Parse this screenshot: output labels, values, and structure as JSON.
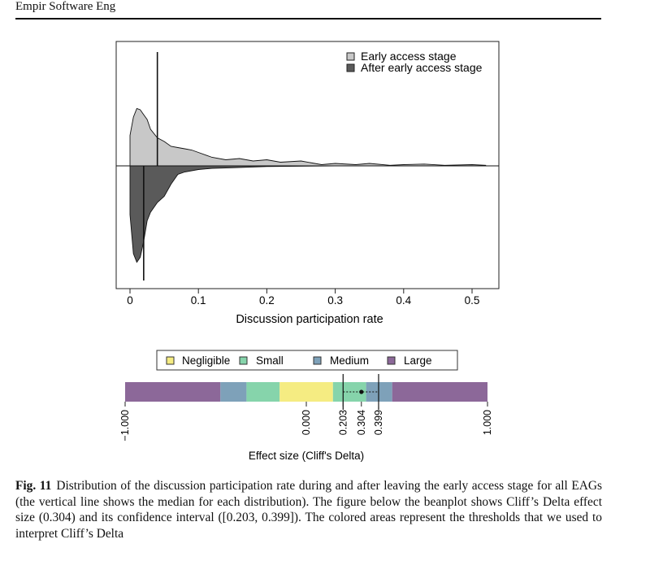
{
  "running_head": "Empir Software Eng",
  "figure_label": "Fig. 11",
  "caption": "Distribution of the discussion participation rate during and after leaving the early access stage for all EAGs (the vertical line shows the median for each distribution). The figure below the beanplot shows Cliff’s Delta effect size (0.304) and its confidence interval ([0.203, 0.399]). The colored areas represent the thresholds that we used to interpret Cliff’s Delta",
  "colors": {
    "early": "#c8c8c8",
    "after": "#5a5a5a",
    "negligible": "#f5ec82",
    "small": "#86d4ab",
    "medium": "#7ea1b9",
    "large": "#8c6899"
  },
  "chart_data": [
    {
      "type": "area",
      "subtype": "beanplot",
      "xlabel": "Discussion participation rate",
      "xlim": [
        -0.02,
        0.54
      ],
      "xticks": [
        0,
        0.1,
        0.2,
        0.3,
        0.4,
        0.5
      ],
      "xtick_labels": [
        "0",
        "0.1",
        "0.2",
        "0.3",
        "0.4",
        "0.5"
      ],
      "legend_position": "top-right",
      "series": [
        {
          "name": "Early access stage",
          "side": "upper",
          "median": 0.04,
          "x": [
            0.0,
            0.005,
            0.01,
            0.015,
            0.02,
            0.025,
            0.03,
            0.04,
            0.05,
            0.06,
            0.07,
            0.08,
            0.09,
            0.1,
            0.12,
            0.14,
            0.16,
            0.18,
            0.2,
            0.22,
            0.25,
            0.28,
            0.3,
            0.33,
            0.35,
            0.38,
            0.4,
            0.43,
            0.46,
            0.5,
            0.52
          ],
          "y": [
            0.25,
            0.4,
            0.47,
            0.46,
            0.42,
            0.38,
            0.3,
            0.23,
            0.2,
            0.16,
            0.15,
            0.14,
            0.13,
            0.11,
            0.07,
            0.05,
            0.06,
            0.04,
            0.05,
            0.03,
            0.04,
            0.01,
            0.02,
            0.01,
            0.02,
            0.005,
            0.01,
            0.015,
            0.005,
            0.01,
            0.005
          ]
        },
        {
          "name": "After early access stage",
          "side": "lower",
          "median": 0.02,
          "x": [
            0.0,
            0.005,
            0.01,
            0.015,
            0.02,
            0.025,
            0.03,
            0.04,
            0.05,
            0.06,
            0.07,
            0.08,
            0.1,
            0.12,
            0.15,
            0.2,
            0.3,
            0.4,
            0.52
          ],
          "y": [
            0.4,
            0.72,
            0.79,
            0.75,
            0.62,
            0.45,
            0.38,
            0.3,
            0.25,
            0.15,
            0.07,
            0.05,
            0.03,
            0.02,
            0.015,
            0.005,
            0.0,
            0.0,
            0.0
          ]
        }
      ]
    },
    {
      "type": "bar",
      "subtype": "effect-size-strip",
      "xlabel": "Effect size (Cliff's Delta)",
      "xlim": [
        -1,
        1
      ],
      "legend_entries": [
        "Negligible",
        "Small",
        "Medium",
        "Large"
      ],
      "regions": [
        {
          "label": "Large",
          "from": -1.0,
          "to": -0.474
        },
        {
          "label": "Medium",
          "from": -0.474,
          "to": -0.33
        },
        {
          "label": "Small",
          "from": -0.33,
          "to": -0.147
        },
        {
          "label": "Negligible",
          "from": -0.147,
          "to": 0.147
        },
        {
          "label": "Small",
          "from": 0.147,
          "to": 0.33
        },
        {
          "label": "Medium",
          "from": 0.33,
          "to": 0.474
        },
        {
          "label": "Large",
          "from": 0.474,
          "to": 1.0
        }
      ],
      "estimate": 0.304,
      "ci": [
        0.203,
        0.399
      ],
      "tick_values": [
        -1.0,
        0.0,
        0.203,
        0.304,
        0.399,
        1.0
      ],
      "tick_labels": [
        "−1.000",
        "0.000",
        "0.203",
        "0.304",
        "0.399",
        "1.000"
      ]
    }
  ]
}
